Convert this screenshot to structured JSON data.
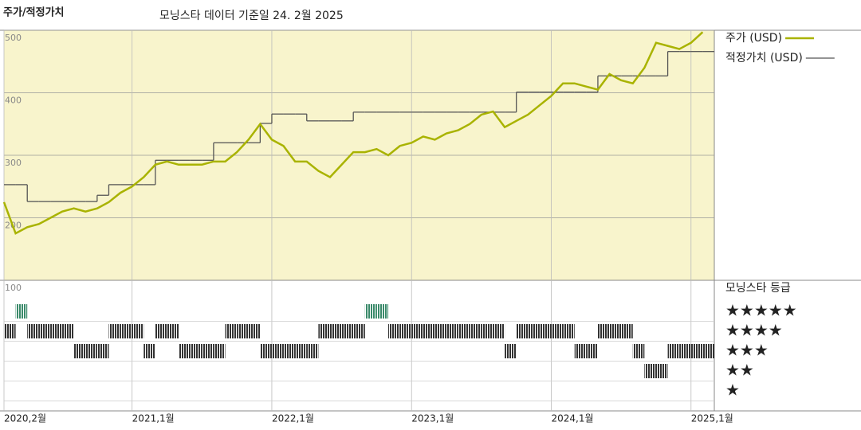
{
  "header": {
    "title": "주가/적정가치",
    "subtitle": "모닝스타 데이터 기준일 24. 2월 2025"
  },
  "chart_data": [
    {
      "type": "line",
      "x": [
        "2020-02",
        "2020-03",
        "2020-04",
        "2020-05",
        "2020-06",
        "2020-07",
        "2020-08",
        "2020-09",
        "2020-10",
        "2020-11",
        "2020-12",
        "2021-01",
        "2021-02",
        "2021-03",
        "2021-04",
        "2021-05",
        "2021-06",
        "2021-07",
        "2021-08",
        "2021-09",
        "2021-10",
        "2021-11",
        "2021-12",
        "2022-01",
        "2022-02",
        "2022-03",
        "2022-04",
        "2022-05",
        "2022-06",
        "2022-07",
        "2022-08",
        "2022-09",
        "2022-10",
        "2022-11",
        "2022-12",
        "2023-01",
        "2023-02",
        "2023-03",
        "2023-04",
        "2023-05",
        "2023-06",
        "2023-07",
        "2023-08",
        "2023-09",
        "2023-10",
        "2023-11",
        "2023-12",
        "2024-01",
        "2024-02",
        "2024-03",
        "2024-04",
        "2024-05",
        "2024-06",
        "2024-07",
        "2024-08",
        "2024-09",
        "2024-10",
        "2024-11",
        "2024-12",
        "2025-01",
        "2025-02"
      ],
      "series": [
        {
          "name": "주가 (USD)",
          "color": "#a9b300",
          "style": "line",
          "values": [
            225,
            175,
            185,
            190,
            200,
            210,
            215,
            210,
            215,
            225,
            240,
            250,
            265,
            285,
            290,
            285,
            285,
            285,
            290,
            290,
            305,
            325,
            350,
            325,
            315,
            290,
            290,
            275,
            265,
            285,
            305,
            305,
            310,
            300,
            315,
            320,
            330,
            325,
            335,
            340,
            350,
            365,
            370,
            345,
            355,
            365,
            380,
            395,
            415,
            415,
            410,
            405,
            430,
            420,
            415,
            440,
            480,
            475,
            470,
            480,
            497
          ]
        },
        {
          "name": "적정가치 (USD)",
          "color": "#555555",
          "style": "step",
          "values": [
            253,
            253,
            226,
            226,
            226,
            226,
            226,
            226,
            236,
            253,
            253,
            253,
            253,
            292,
            292,
            292,
            292,
            292,
            320,
            320,
            320,
            320,
            351,
            366,
            366,
            366,
            355,
            355,
            355,
            355,
            369,
            369,
            369,
            369,
            369,
            369,
            369,
            369,
            369,
            369,
            369,
            369,
            369,
            369,
            401,
            401,
            401,
            401,
            401,
            401,
            401,
            427,
            427,
            427,
            427,
            427,
            427,
            466,
            466,
            466,
            466
          ]
        }
      ],
      "xlim": [
        "2020-02",
        "2025-03"
      ],
      "xticks": [
        {
          "value": "2020-02",
          "label": "2020,2월"
        },
        {
          "value": "2021-01",
          "label": "2021,1월"
        },
        {
          "value": "2022-01",
          "label": "2022,1월"
        },
        {
          "value": "2023-01",
          "label": "2023,1월"
        },
        {
          "value": "2024-01",
          "label": "2024,1월"
        },
        {
          "value": "2025-01",
          "label": "2025,1월"
        }
      ],
      "ylim": [
        100,
        500
      ],
      "yticks": [
        200,
        300,
        400,
        500
      ],
      "grid": true,
      "background": "#f8f4cc"
    },
    {
      "type": "rating",
      "title": "모닝스타 등급",
      "ylabel": "100",
      "levels": [
        "★★★★★",
        "★★★★",
        "★★★",
        "★★",
        "★"
      ],
      "color": "#333333",
      "highlight_color": "#3a8a6a",
      "values": [
        4,
        5,
        4,
        4,
        4,
        4,
        3,
        3,
        3,
        4,
        4,
        4,
        3,
        4,
        4,
        3,
        3,
        3,
        3,
        4,
        4,
        4,
        3,
        3,
        3,
        3,
        3,
        4,
        4,
        4,
        4,
        5,
        5,
        4,
        4,
        4,
        4,
        4,
        4,
        4,
        4,
        4,
        4,
        3,
        4,
        4,
        4,
        4,
        4,
        3,
        3,
        4,
        4,
        4,
        3,
        2,
        2,
        3,
        3,
        3,
        3
      ]
    }
  ]
}
